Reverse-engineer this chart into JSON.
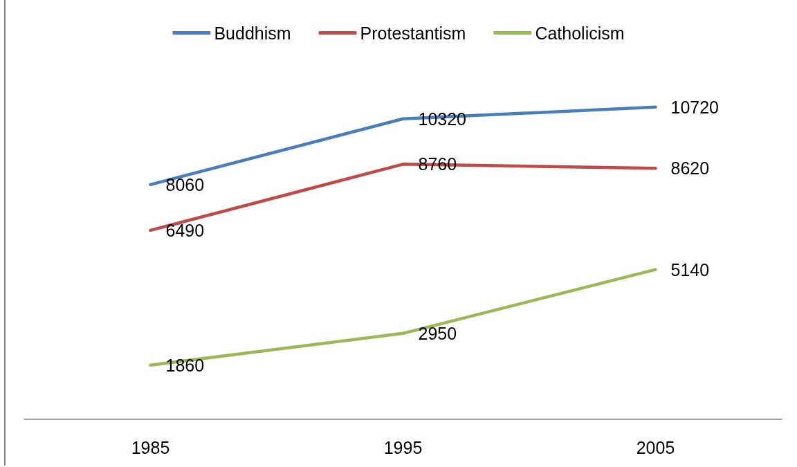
{
  "chart_data": {
    "type": "line",
    "categories": [
      "1985",
      "1995",
      "2005"
    ],
    "series": [
      {
        "name": "Buddhism",
        "color": "#4a7ebb",
        "values": [
          8060,
          10320,
          10720
        ]
      },
      {
        "name": "Protestantism",
        "color": "#be4b48",
        "values": [
          6490,
          8760,
          8620
        ]
      },
      {
        "name": "Catholicism",
        "color": "#98b954",
        "values": [
          1860,
          2950,
          5140
        ]
      }
    ],
    "data_labels": true,
    "legend": "top",
    "grid": false,
    "marker": "none",
    "line_style": "solid",
    "tick_labels": "x"
  }
}
